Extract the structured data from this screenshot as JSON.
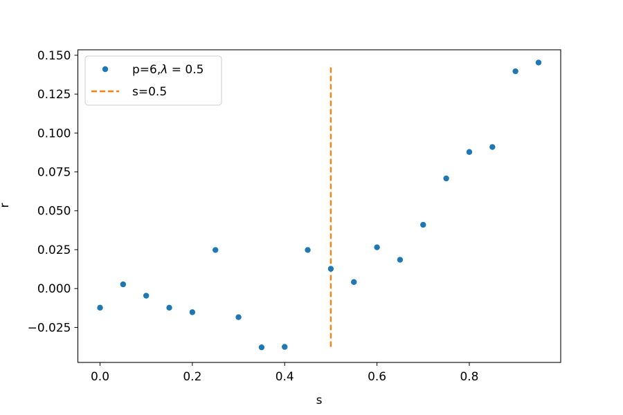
{
  "chart_data": {
    "type": "scatter",
    "xlabel": "s",
    "ylabel": "r",
    "xlim": [
      -0.048,
      0.998
    ],
    "ylim": [
      -0.0475,
      0.1535
    ],
    "xticks": [
      0.0,
      0.2,
      0.4,
      0.6,
      0.8
    ],
    "xtick_labels": [
      "0.0",
      "0.2",
      "0.4",
      "0.6",
      "0.8"
    ],
    "yticks": [
      -0.025,
      0.0,
      0.025,
      0.05,
      0.075,
      0.1,
      0.125,
      0.15
    ],
    "ytick_labels": [
      "−0.025",
      "0.000",
      "0.025",
      "0.050",
      "0.075",
      "0.100",
      "0.125",
      "0.150"
    ],
    "grid": false,
    "legend_position": "top-left",
    "series": [
      {
        "name": "p=6,λ = 0.5",
        "legend_prefix": "p=6,",
        "legend_lambda": "λ",
        "legend_suffix": " = 0.5",
        "kind": "points",
        "color": "#1f77b4",
        "x": [
          0.0,
          0.05,
          0.1,
          0.15,
          0.2,
          0.25,
          0.3,
          0.35,
          0.4,
          0.45,
          0.5,
          0.55,
          0.6,
          0.65,
          0.7,
          0.75,
          0.8,
          0.85,
          0.9,
          0.95
        ],
        "y": [
          -0.0123,
          0.0027,
          -0.0046,
          -0.0123,
          -0.0152,
          0.0248,
          -0.0184,
          -0.0378,
          -0.0375,
          0.0248,
          0.0127,
          0.0042,
          0.0265,
          0.0185,
          0.041,
          0.0708,
          0.0878,
          0.091,
          0.1397,
          0.1453
        ]
      },
      {
        "name": "s=0.5",
        "kind": "vline-dashed",
        "color": "#ff7f0e",
        "x": 0.5,
        "y_range": [
          -0.0375,
          0.144
        ]
      }
    ]
  }
}
